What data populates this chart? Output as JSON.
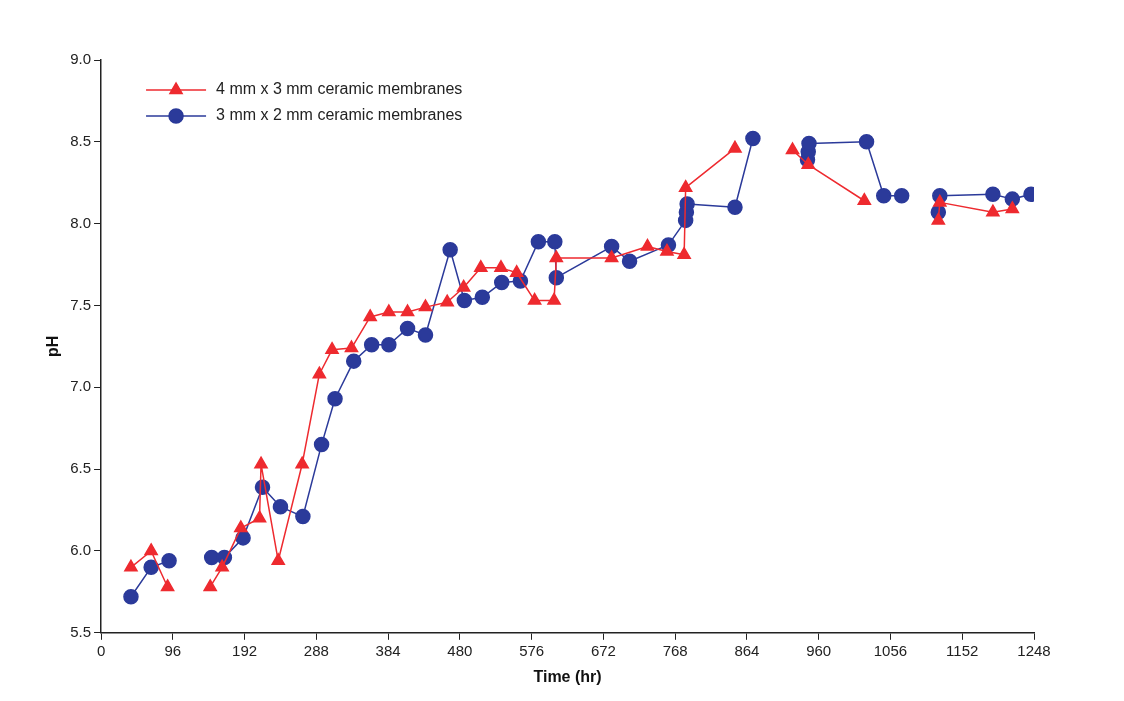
{
  "chart_data": {
    "type": "line",
    "xlabel": "Time (hr)",
    "ylabel": "pH",
    "legend": "top left",
    "grid": false,
    "xlim": [
      0,
      1248
    ],
    "xticks": [
      0,
      96,
      192,
      288,
      384,
      480,
      576,
      672,
      768,
      864,
      960,
      1056,
      1152,
      1248
    ],
    "ylim": [
      5.5,
      9.0
    ],
    "yticks": [
      {
        "value": 5.5,
        "label": "5.5"
      },
      {
        "value": 6,
        "label": "6.0"
      },
      {
        "value": 6.5,
        "label": "6.5"
      },
      {
        "value": 7,
        "label": "7.0"
      },
      {
        "value": 7.5,
        "label": "7.5"
      },
      {
        "value": 8,
        "label": "8.0"
      },
      {
        "value": 8.5,
        "label": "8.5"
      },
      {
        "value": 9,
        "label": "9.0"
      }
    ],
    "series": [
      {
        "name": "4 mm x 3 mm ceramic membranes",
        "color": "#ee2a2f",
        "marker": "triangle",
        "x": [
          40,
          67,
          89,
          118,
          146,
          162,
          187,
          212,
          214,
          237,
          269,
          292,
          309,
          335,
          360,
          385,
          410,
          434,
          463,
          485,
          508,
          535,
          556,
          580,
          606,
          609,
          683,
          731,
          757,
          780,
          782,
          848,
          886,
          925,
          946,
          1021,
          1071,
          1120,
          1122,
          1193,
          1219
        ],
        "values": [
          5.9,
          6.0,
          5.78,
          null,
          5.78,
          5.9,
          6.14,
          6.2,
          6.53,
          5.94,
          6.53,
          7.08,
          7.23,
          7.24,
          7.43,
          7.46,
          7.46,
          7.49,
          7.52,
          7.61,
          7.73,
          7.73,
          7.7,
          7.53,
          7.53,
          7.79,
          7.79,
          7.86,
          7.83,
          7.81,
          8.22,
          8.46,
          null,
          8.45,
          8.36,
          8.14,
          null,
          8.02,
          8.13,
          8.07,
          8.09
        ]
      },
      {
        "name": "3 mm x 2 mm ceramic membranes",
        "color": "#2b3a9a",
        "marker": "circle",
        "x": [
          40,
          67,
          91,
          120,
          148,
          165,
          190,
          216,
          240,
          270,
          295,
          313,
          338,
          362,
          385,
          410,
          434,
          467,
          486,
          510,
          536,
          561,
          585,
          607,
          609,
          683,
          707,
          759,
          782,
          783,
          784,
          848,
          872,
          909,
          945,
          946,
          947,
          1024,
          1047,
          1071,
          1096,
          1120,
          1122,
          1193,
          1219,
          1244
        ],
        "values": [
          5.72,
          5.9,
          5.94,
          null,
          5.96,
          5.96,
          6.08,
          6.39,
          6.27,
          6.21,
          6.65,
          6.93,
          7.16,
          7.26,
          7.26,
          7.36,
          7.32,
          7.84,
          7.53,
          7.55,
          7.64,
          7.65,
          7.89,
          7.89,
          7.67,
          7.86,
          7.77,
          7.87,
          8.02,
          8.07,
          8.12,
          8.1,
          8.52,
          null,
          8.39,
          8.44,
          8.49,
          8.5,
          8.17,
          8.17,
          null,
          8.07,
          8.17,
          8.18,
          8.15,
          8.18
        ]
      }
    ]
  }
}
